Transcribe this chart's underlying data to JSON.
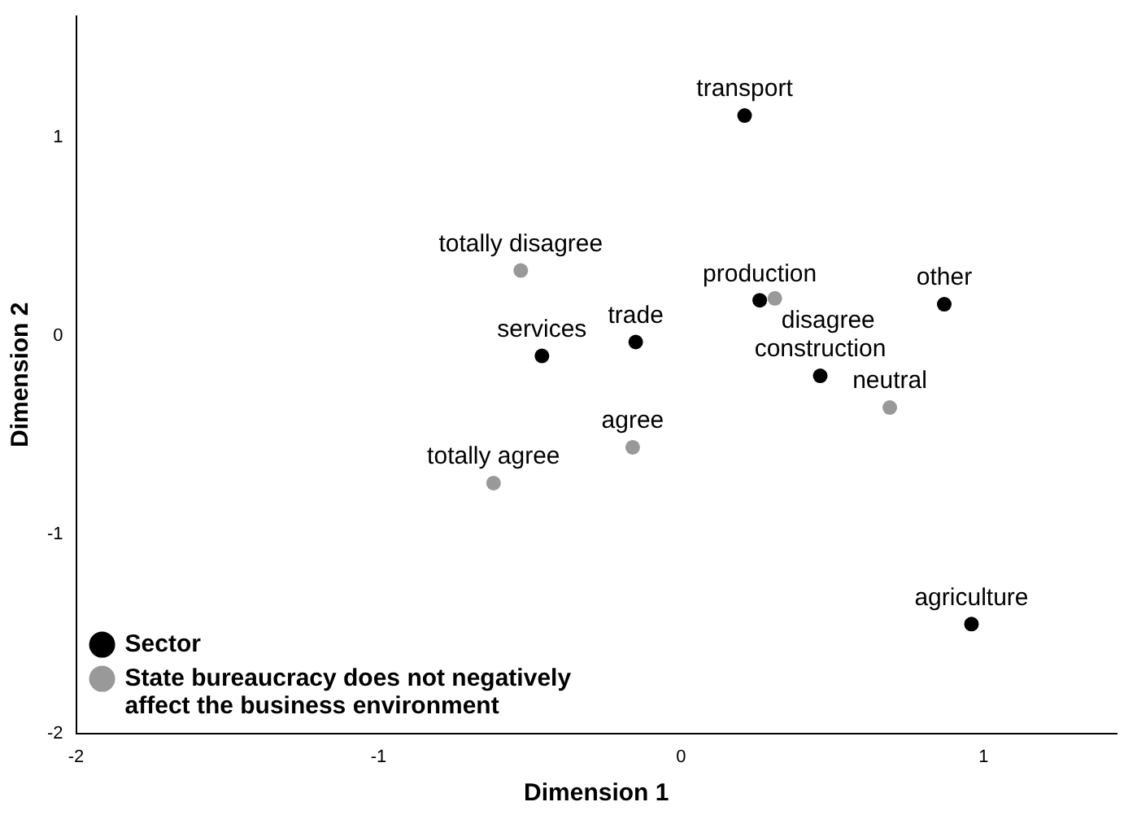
{
  "chart_data": {
    "type": "scatter",
    "xlabel": "Dimension 1",
    "ylabel": "Dimension 2",
    "xlim": [
      -2,
      1.44
    ],
    "ylim": [
      -2,
      1.61
    ],
    "xticks": [
      -2,
      -1,
      0,
      1
    ],
    "yticks": [
      -2,
      -1,
      0,
      1
    ],
    "grid": false,
    "legend": "bottom left",
    "marker": "circle",
    "series": [
      {
        "name": "Sector",
        "color": "#000000",
        "x": [
          0.21,
          0.26,
          0.87,
          -0.46,
          -0.15,
          0.46,
          0.96
        ],
        "values": [
          1.11,
          0.18,
          0.16,
          -0.1,
          -0.03,
          -0.2,
          -1.45
        ]
      },
      {
        "name": "State bureaucracy does not negatively affect the business environment",
        "color": "#999999",
        "x": [
          -0.53,
          0.31,
          0.69,
          -0.16,
          -0.62
        ],
        "values": [
          0.33,
          0.19,
          -0.36,
          -0.56,
          -0.74
        ]
      }
    ],
    "annotations": [
      {
        "text": "transport",
        "x": 0.21,
        "y": 1.11
      },
      {
        "text": "production",
        "x": 0.26,
        "y": 0.18
      },
      {
        "text": "other",
        "x": 0.87,
        "y": 0.16
      },
      {
        "text": "services",
        "x": -0.46,
        "y": -0.1
      },
      {
        "text": "trade",
        "x": -0.15,
        "y": -0.03
      },
      {
        "text": "construction",
        "x": 0.46,
        "y": -0.2
      },
      {
        "text": "agriculture",
        "x": 0.96,
        "y": -1.45
      },
      {
        "text": "totally disagree",
        "x": -0.53,
        "y": 0.33
      },
      {
        "text": "disagree",
        "x": 0.31,
        "y": 0.19
      },
      {
        "text": "neutral",
        "x": 0.69,
        "y": -0.36
      },
      {
        "text": "agree",
        "x": -0.16,
        "y": -0.56
      },
      {
        "text": "totally agree",
        "x": -0.62,
        "y": -0.74
      }
    ]
  }
}
